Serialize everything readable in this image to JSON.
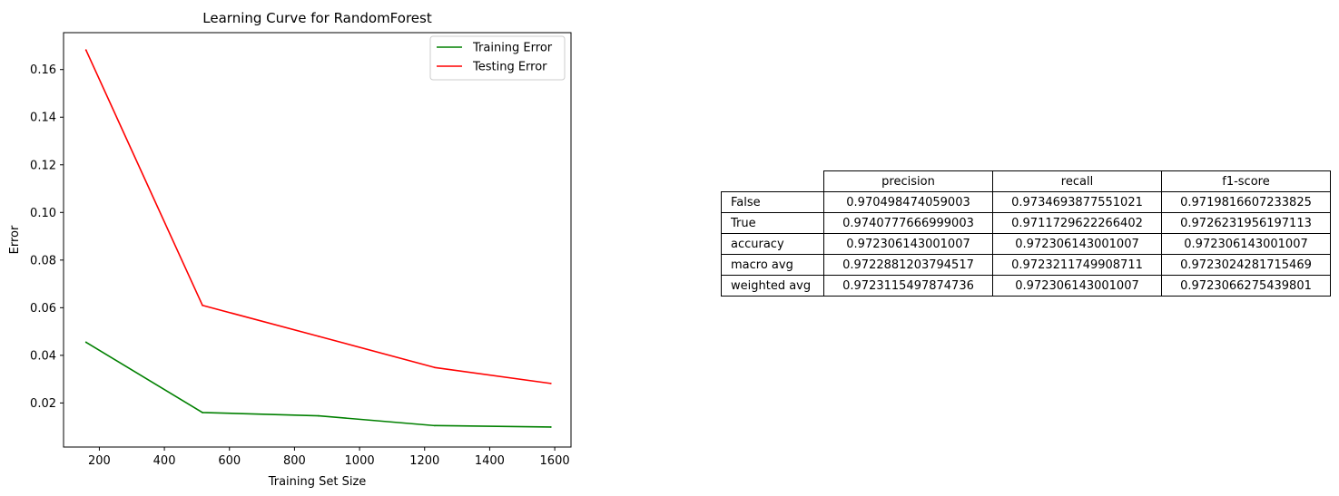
{
  "chart_data": [
    {
      "type": "line",
      "title": "Learning Curve for RandomForest",
      "xlabel": "Training Set Size",
      "ylabel": "Error",
      "xlim": [
        90,
        1650
      ],
      "ylim": [
        0.0015,
        0.1755
      ],
      "xticks": [
        200,
        400,
        600,
        800,
        1000,
        1200,
        1400,
        1600
      ],
      "yticks": [
        0.02,
        0.04,
        0.06,
        0.08,
        0.1,
        0.12,
        0.14,
        0.16
      ],
      "ytick_labels": [
        "0.02",
        "0.04",
        "0.06",
        "0.08",
        "0.10",
        "0.12",
        "0.14",
        "0.16"
      ],
      "grid": false,
      "legend": "top-right",
      "x": [
        159,
        517,
        874,
        1231,
        1588
      ],
      "series": [
        {
          "name": "Training Error",
          "color": "#008000",
          "values": [
            0.0455,
            0.016,
            0.0146,
            0.0105,
            0.0099
          ]
        },
        {
          "name": "Testing Error",
          "color": "#ff0000",
          "values": [
            0.1682,
            0.061,
            0.048,
            0.0349,
            0.0282
          ]
        }
      ]
    },
    {
      "type": "table",
      "columns": [
        "precision",
        "recall",
        "f1-score"
      ],
      "rows": [
        {
          "label": "False",
          "values": [
            "0.970498474059003",
            "0.9734693877551021",
            "0.9719816607233825"
          ]
        },
        {
          "label": "True",
          "values": [
            "0.9740777666999003",
            "0.9711729622266402",
            "0.9726231956197113"
          ]
        },
        {
          "label": "accuracy",
          "values": [
            "0.972306143001007",
            "0.972306143001007",
            "0.972306143001007"
          ]
        },
        {
          "label": "macro avg",
          "values": [
            "0.9722881203794517",
            "0.9723211749908711",
            "0.9723024281715469"
          ]
        },
        {
          "label": "weighted avg",
          "values": [
            "0.9723115497874736",
            "0.972306143001007",
            "0.9723066275439801"
          ]
        }
      ]
    }
  ]
}
